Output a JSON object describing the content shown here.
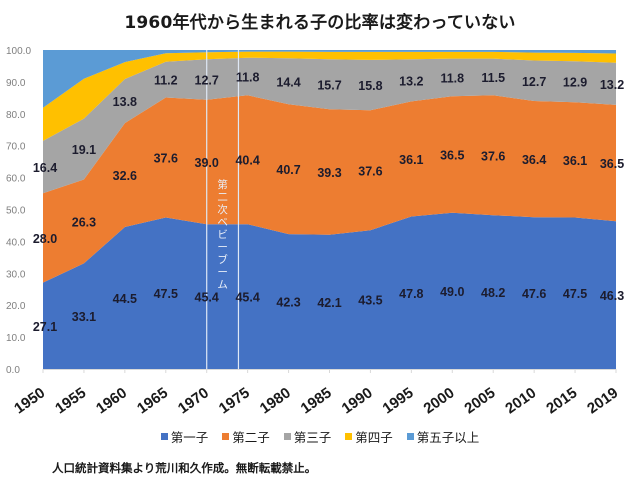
{
  "chart_data": {
    "type": "area",
    "stacked": true,
    "percent": true,
    "title": "1960年代から生まれる子の比率は変わっていない",
    "xlabel": "",
    "ylabel": "",
    "ylim": [
      0,
      100
    ],
    "yticks": [
      "0.0",
      "10.0",
      "20.0",
      "30.0",
      "40.0",
      "50.0",
      "60.0",
      "70.0",
      "80.0",
      "90.0",
      "100.0"
    ],
    "categories": [
      "1950",
      "1955",
      "1960",
      "1965",
      "1970",
      "1975",
      "1980",
      "1985",
      "1990",
      "1995",
      "2000",
      "2005",
      "2010",
      "2015",
      "2019"
    ],
    "series": [
      {
        "name": "第一子",
        "color": "#4472c4",
        "labeled": true,
        "values": [
          27.1,
          33.1,
          44.5,
          47.5,
          45.4,
          45.4,
          42.3,
          42.1,
          43.5,
          47.8,
          49.0,
          48.2,
          47.6,
          47.5,
          46.3
        ]
      },
      {
        "name": "第二子",
        "color": "#ed7d31",
        "labeled": true,
        "values": [
          28.0,
          26.3,
          32.6,
          37.6,
          39.0,
          40.4,
          40.7,
          39.3,
          37.6,
          36.1,
          36.5,
          37.6,
          36.4,
          36.1,
          36.5
        ]
      },
      {
        "name": "第三子",
        "color": "#a5a5a5",
        "labeled": true,
        "values": [
          16.4,
          19.1,
          13.8,
          11.2,
          12.7,
          11.8,
          14.4,
          15.7,
          15.8,
          13.2,
          11.8,
          11.5,
          12.7,
          12.9,
          13.2
        ]
      },
      {
        "name": "第四子",
        "color": "#ffc000",
        "labeled": false,
        "values": [
          10.4,
          12.5,
          5.3,
          2.7,
          2.2,
          1.9,
          2.1,
          2.3,
          2.5,
          2.3,
          2.1,
          2.1,
          2.5,
          2.6,
          2.9
        ]
      },
      {
        "name": "第五子以上",
        "color": "#5b9bd5",
        "labeled": false,
        "values": [
          18.1,
          9.0,
          3.8,
          1.0,
          0.7,
          0.5,
          0.5,
          0.6,
          0.6,
          0.6,
          0.6,
          0.6,
          0.8,
          0.9,
          1.1
        ]
      }
    ],
    "labels": {
      "第一子": [
        "27.1",
        "33.1",
        "44.5",
        "47.5",
        "45.4",
        "45.4",
        "42.3",
        "42.1",
        "43.5",
        "47.8",
        "49.0",
        "48.2",
        "47.6",
        "47.5",
        "46.3"
      ],
      "第二子": [
        "28.0",
        "26.3",
        "32.6",
        "37.6",
        "39.0",
        "40.4",
        "40.7",
        "39.3",
        "37.6",
        "36.1",
        "36.5",
        "37.6",
        "36.4",
        "36.1",
        "36.5"
      ],
      "第三子": [
        "16.4",
        "19.1",
        "13.8",
        "11.2",
        "12.7",
        "11.8",
        "14.4",
        "15.7",
        "15.8",
        "13.2",
        "11.8",
        "11.5",
        "12.7",
        "12.9",
        "13.2"
      ]
    },
    "annotation": {
      "text": "第二次ベビーブーム",
      "span_years": [
        1970,
        1974
      ],
      "orientation": "vertical"
    },
    "legend_position": "bottom",
    "grid": false
  },
  "source_note": "人口統計資料集より荒川和久作成。無断転載禁止。"
}
